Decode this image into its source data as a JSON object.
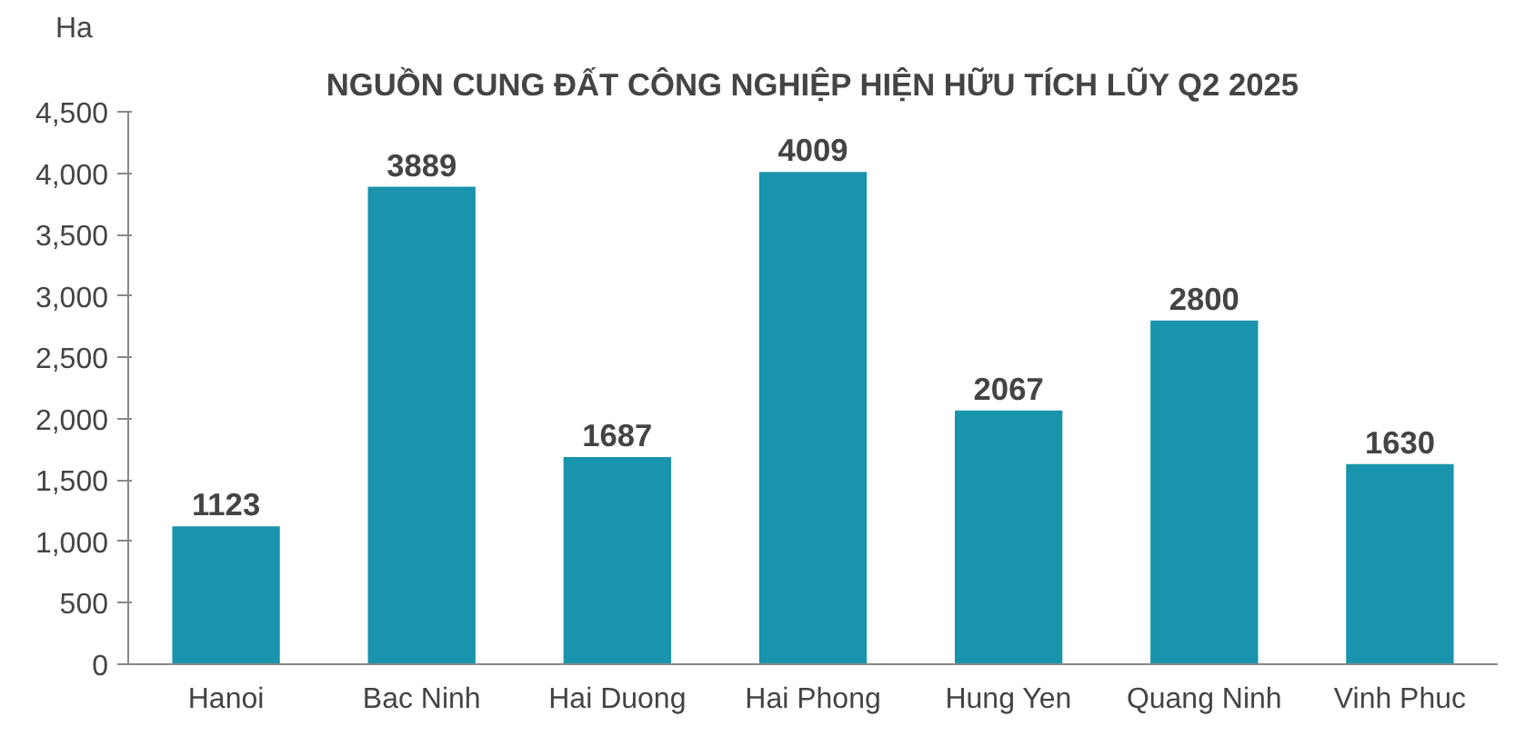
{
  "chart_data": {
    "type": "bar",
    "title": "NGUỒN CUNG ĐẤT CÔNG NGHIỆP HIỆN HỮU TÍCH LŨY Q2 2025",
    "ylabel": "Ha",
    "categories": [
      "Hanoi",
      "Bac Ninh",
      "Hai Duong",
      "Hai Phong",
      "Hung Yen",
      "Quang Ninh",
      "Vinh Phuc"
    ],
    "values": [
      1123,
      3889,
      1687,
      4009,
      2067,
      2800,
      1630
    ],
    "color": "#1a93ad",
    "data_labels": true,
    "ylim": [
      0,
      4500
    ],
    "yticks": [
      0,
      {
        "value": 500,
        "label": "500"
      },
      {
        "value": 1000,
        "label": "1,000"
      },
      {
        "value": 1500,
        "label": "1,500"
      },
      {
        "value": 2000,
        "label": "2,000"
      },
      {
        "value": 2500,
        "label": "2,500"
      },
      {
        "value": 3000,
        "label": "3,000"
      },
      {
        "value": 3500,
        "label": "3,500"
      },
      {
        "value": 4000,
        "label": "4,000"
      },
      {
        "value": 4500,
        "label": "4,500"
      }
    ],
    "grid": false
  }
}
